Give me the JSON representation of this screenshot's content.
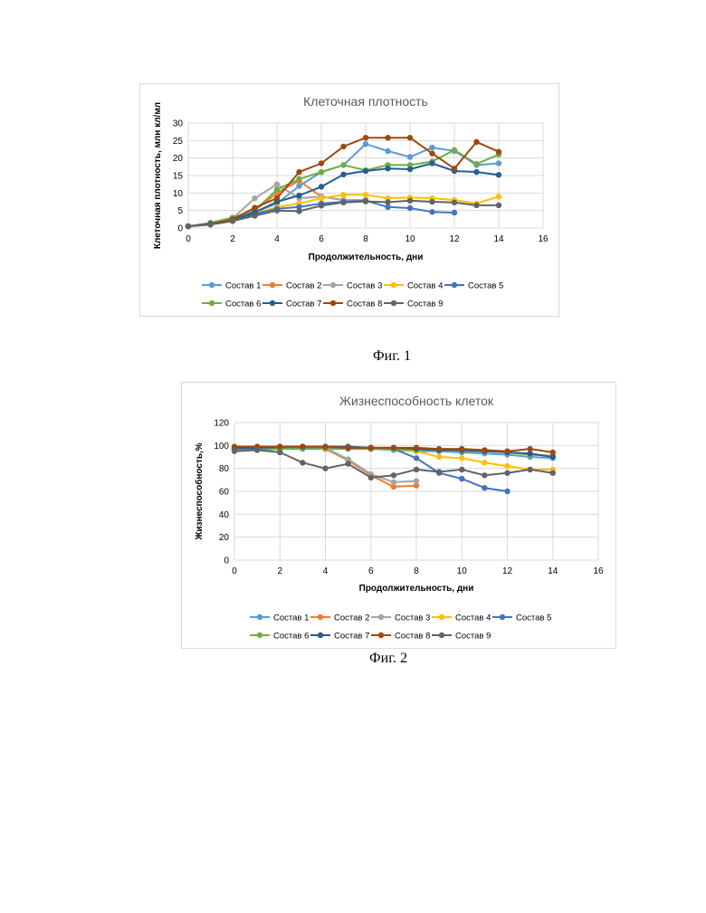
{
  "captions": [
    "Фиг. 1",
    "Фиг. 2"
  ],
  "chart_data": [
    {
      "type": "line",
      "title": "Клеточная плотность",
      "xlabel": "Продолжительность, дни",
      "ylabel": "Клеточная плотность, млн кл/мл",
      "xlim": [
        0,
        16
      ],
      "ylim": [
        0,
        30
      ],
      "xticks": [
        0,
        2,
        4,
        6,
        8,
        10,
        12,
        14,
        16
      ],
      "yticks": [
        0,
        5,
        10,
        15,
        20,
        25,
        30
      ],
      "grid": true,
      "legend": "bottom",
      "series": [
        {
          "name": "Состав 1",
          "color": "#5b9bd5",
          "x": [
            0,
            1,
            2,
            3,
            4,
            5,
            6,
            7,
            8,
            9,
            10,
            11,
            12,
            13,
            14
          ],
          "values": [
            0.5,
            1.2,
            2.5,
            4.5,
            7,
            12,
            16,
            18,
            24,
            22,
            20.3,
            23,
            22,
            18,
            18.5
          ]
        },
        {
          "name": "Состав 2",
          "color": "#ed7d31",
          "x": [
            0,
            1,
            2,
            3,
            4,
            5,
            6,
            7,
            8
          ],
          "values": [
            0.5,
            1.2,
            2.5,
            5,
            10,
            13.5,
            9,
            8,
            8
          ]
        },
        {
          "name": "Состав 3",
          "color": "#a5a5a5",
          "x": [
            0,
            1,
            2,
            3,
            4,
            5,
            6,
            7,
            8
          ],
          "values": [
            0.5,
            1.2,
            2.8,
            8.5,
            12.5,
            8.5,
            9,
            8,
            8
          ]
        },
        {
          "name": "Состав 4",
          "color": "#ffc000",
          "x": [
            0,
            1,
            2,
            3,
            4,
            5,
            6,
            7,
            8,
            9,
            10,
            11,
            12,
            13,
            14
          ],
          "values": [
            0.5,
            1.2,
            2.5,
            4,
            6,
            7,
            8.5,
            9.5,
            9.5,
            8.5,
            8.7,
            8.5,
            8,
            7,
            9
          ]
        },
        {
          "name": "Состав 5",
          "color": "#4472c4",
          "x": [
            0,
            1,
            2,
            3,
            4,
            5,
            6,
            7,
            8,
            9,
            10,
            11,
            12
          ],
          "values": [
            0.5,
            1,
            2,
            4,
            5.5,
            6,
            7,
            7.5,
            7.8,
            6,
            5.7,
            4.6,
            4.4
          ]
        },
        {
          "name": "Состав 6",
          "color": "#70ad47",
          "x": [
            0,
            1,
            2,
            3,
            4,
            5,
            6,
            7,
            8,
            9,
            10,
            11,
            12,
            13,
            14
          ],
          "values": [
            0.5,
            1.5,
            3,
            5,
            11,
            14,
            16,
            18,
            16.5,
            18,
            18,
            19,
            22.3,
            18.3,
            21
          ]
        },
        {
          "name": "Состав 7",
          "color": "#255e91",
          "x": [
            0,
            1,
            2,
            3,
            4,
            5,
            6,
            7,
            8,
            9,
            10,
            11,
            12,
            13,
            14
          ],
          "values": [
            0.5,
            1.2,
            2.3,
            4.5,
            7.5,
            9.3,
            11.8,
            15.3,
            16.3,
            17,
            16.8,
            18.5,
            16.3,
            16,
            15.2
          ]
        },
        {
          "name": "Состав 8",
          "color": "#9e480e",
          "x": [
            0,
            1,
            2,
            3,
            4,
            5,
            6,
            7,
            8,
            9,
            10,
            11,
            12,
            13,
            14
          ],
          "values": [
            0.5,
            1,
            2.5,
            5.8,
            8.5,
            16,
            18.5,
            23.3,
            25.8,
            25.8,
            25.8,
            21.3,
            17,
            24.6,
            21.8
          ]
        },
        {
          "name": "Состав 9",
          "color": "#636363",
          "x": [
            0,
            1,
            2,
            3,
            4,
            5,
            6,
            7,
            8,
            9,
            10,
            11,
            12,
            13,
            14
          ],
          "values": [
            0.5,
            1,
            2,
            3.5,
            5,
            4.8,
            6.4,
            7.3,
            7.6,
            7.4,
            7.8,
            7.5,
            7.3,
            6.5,
            6.5
          ]
        }
      ]
    },
    {
      "type": "line",
      "title": "Жизнеспособность клеток",
      "xlabel": "Продолжительность, дни",
      "ylabel": "Жизнеспособность,%",
      "xlim": [
        0,
        16
      ],
      "ylim": [
        0,
        120
      ],
      "xticks": [
        0,
        2,
        4,
        6,
        8,
        10,
        12,
        14,
        16
      ],
      "yticks": [
        0,
        20,
        40,
        60,
        80,
        100,
        120
      ],
      "grid": true,
      "legend": "bottom",
      "series": [
        {
          "name": "Состав 1",
          "color": "#5b9bd5",
          "x": [
            0,
            1,
            2,
            3,
            4,
            5,
            6,
            7,
            8,
            9,
            10,
            11,
            12,
            13,
            14
          ],
          "values": [
            97,
            97,
            97,
            97,
            97,
            97,
            97,
            96,
            95,
            95,
            94,
            93,
            92,
            90,
            89
          ]
        },
        {
          "name": "Состав 2",
          "color": "#ed7d31",
          "x": [
            0,
            1,
            2,
            3,
            4,
            5,
            6,
            7,
            8
          ],
          "values": [
            98,
            98,
            98,
            99,
            97,
            87,
            74,
            64,
            65
          ]
        },
        {
          "name": "Состав 3",
          "color": "#a5a5a5",
          "x": [
            0,
            1,
            2,
            3,
            4,
            5,
            6,
            7,
            8
          ],
          "values": [
            98,
            98,
            99,
            99,
            98,
            88,
            75,
            68,
            69
          ]
        },
        {
          "name": "Состав 4",
          "color": "#ffc000",
          "x": [
            0,
            1,
            2,
            3,
            4,
            5,
            6,
            7,
            8,
            9,
            10,
            11,
            12,
            13,
            14
          ],
          "values": [
            99,
            99,
            99,
            99,
            98,
            98,
            98,
            97,
            95,
            90,
            89,
            85,
            82,
            79,
            79
          ]
        },
        {
          "name": "Состав 5",
          "color": "#4472c4",
          "x": [
            0,
            1,
            2,
            3,
            4,
            5,
            6,
            7,
            8,
            9,
            10,
            11,
            12
          ],
          "values": [
            97,
            97,
            98,
            98,
            98,
            98,
            98,
            97,
            89,
            76,
            71,
            63,
            60
          ]
        },
        {
          "name": "Состав 6",
          "color": "#70ad47",
          "x": [
            0,
            1,
            2,
            3,
            4,
            5,
            6,
            7,
            8,
            9,
            10,
            11,
            12,
            13,
            14
          ],
          "values": [
            96,
            96,
            97,
            98,
            98,
            98,
            97,
            97,
            96,
            96,
            95,
            95,
            94,
            92,
            91
          ]
        },
        {
          "name": "Состав 7",
          "color": "#255e91",
          "x": [
            0,
            1,
            2,
            3,
            4,
            5,
            6,
            7,
            8,
            9,
            10,
            11,
            12,
            13,
            14
          ],
          "values": [
            98,
            98,
            99,
            99,
            99,
            99,
            98,
            98,
            97,
            96,
            96,
            95,
            94,
            93,
            90
          ]
        },
        {
          "name": "Состав 8",
          "color": "#9e480e",
          "x": [
            0,
            1,
            2,
            3,
            4,
            5,
            6,
            7,
            8,
            9,
            10,
            11,
            12,
            13,
            14
          ],
          "values": [
            99,
            99,
            99,
            99,
            99,
            98,
            98,
            98,
            98,
            97,
            97,
            96,
            95,
            97,
            94
          ]
        },
        {
          "name": "Состав 9",
          "color": "#636363",
          "x": [
            0,
            1,
            2,
            3,
            4,
            5,
            6,
            7,
            8,
            9,
            10,
            11,
            12,
            13,
            14
          ],
          "values": [
            95,
            96,
            94,
            85,
            80,
            84,
            72,
            74,
            79,
            77,
            79,
            74,
            76,
            79,
            76
          ]
        }
      ]
    }
  ]
}
